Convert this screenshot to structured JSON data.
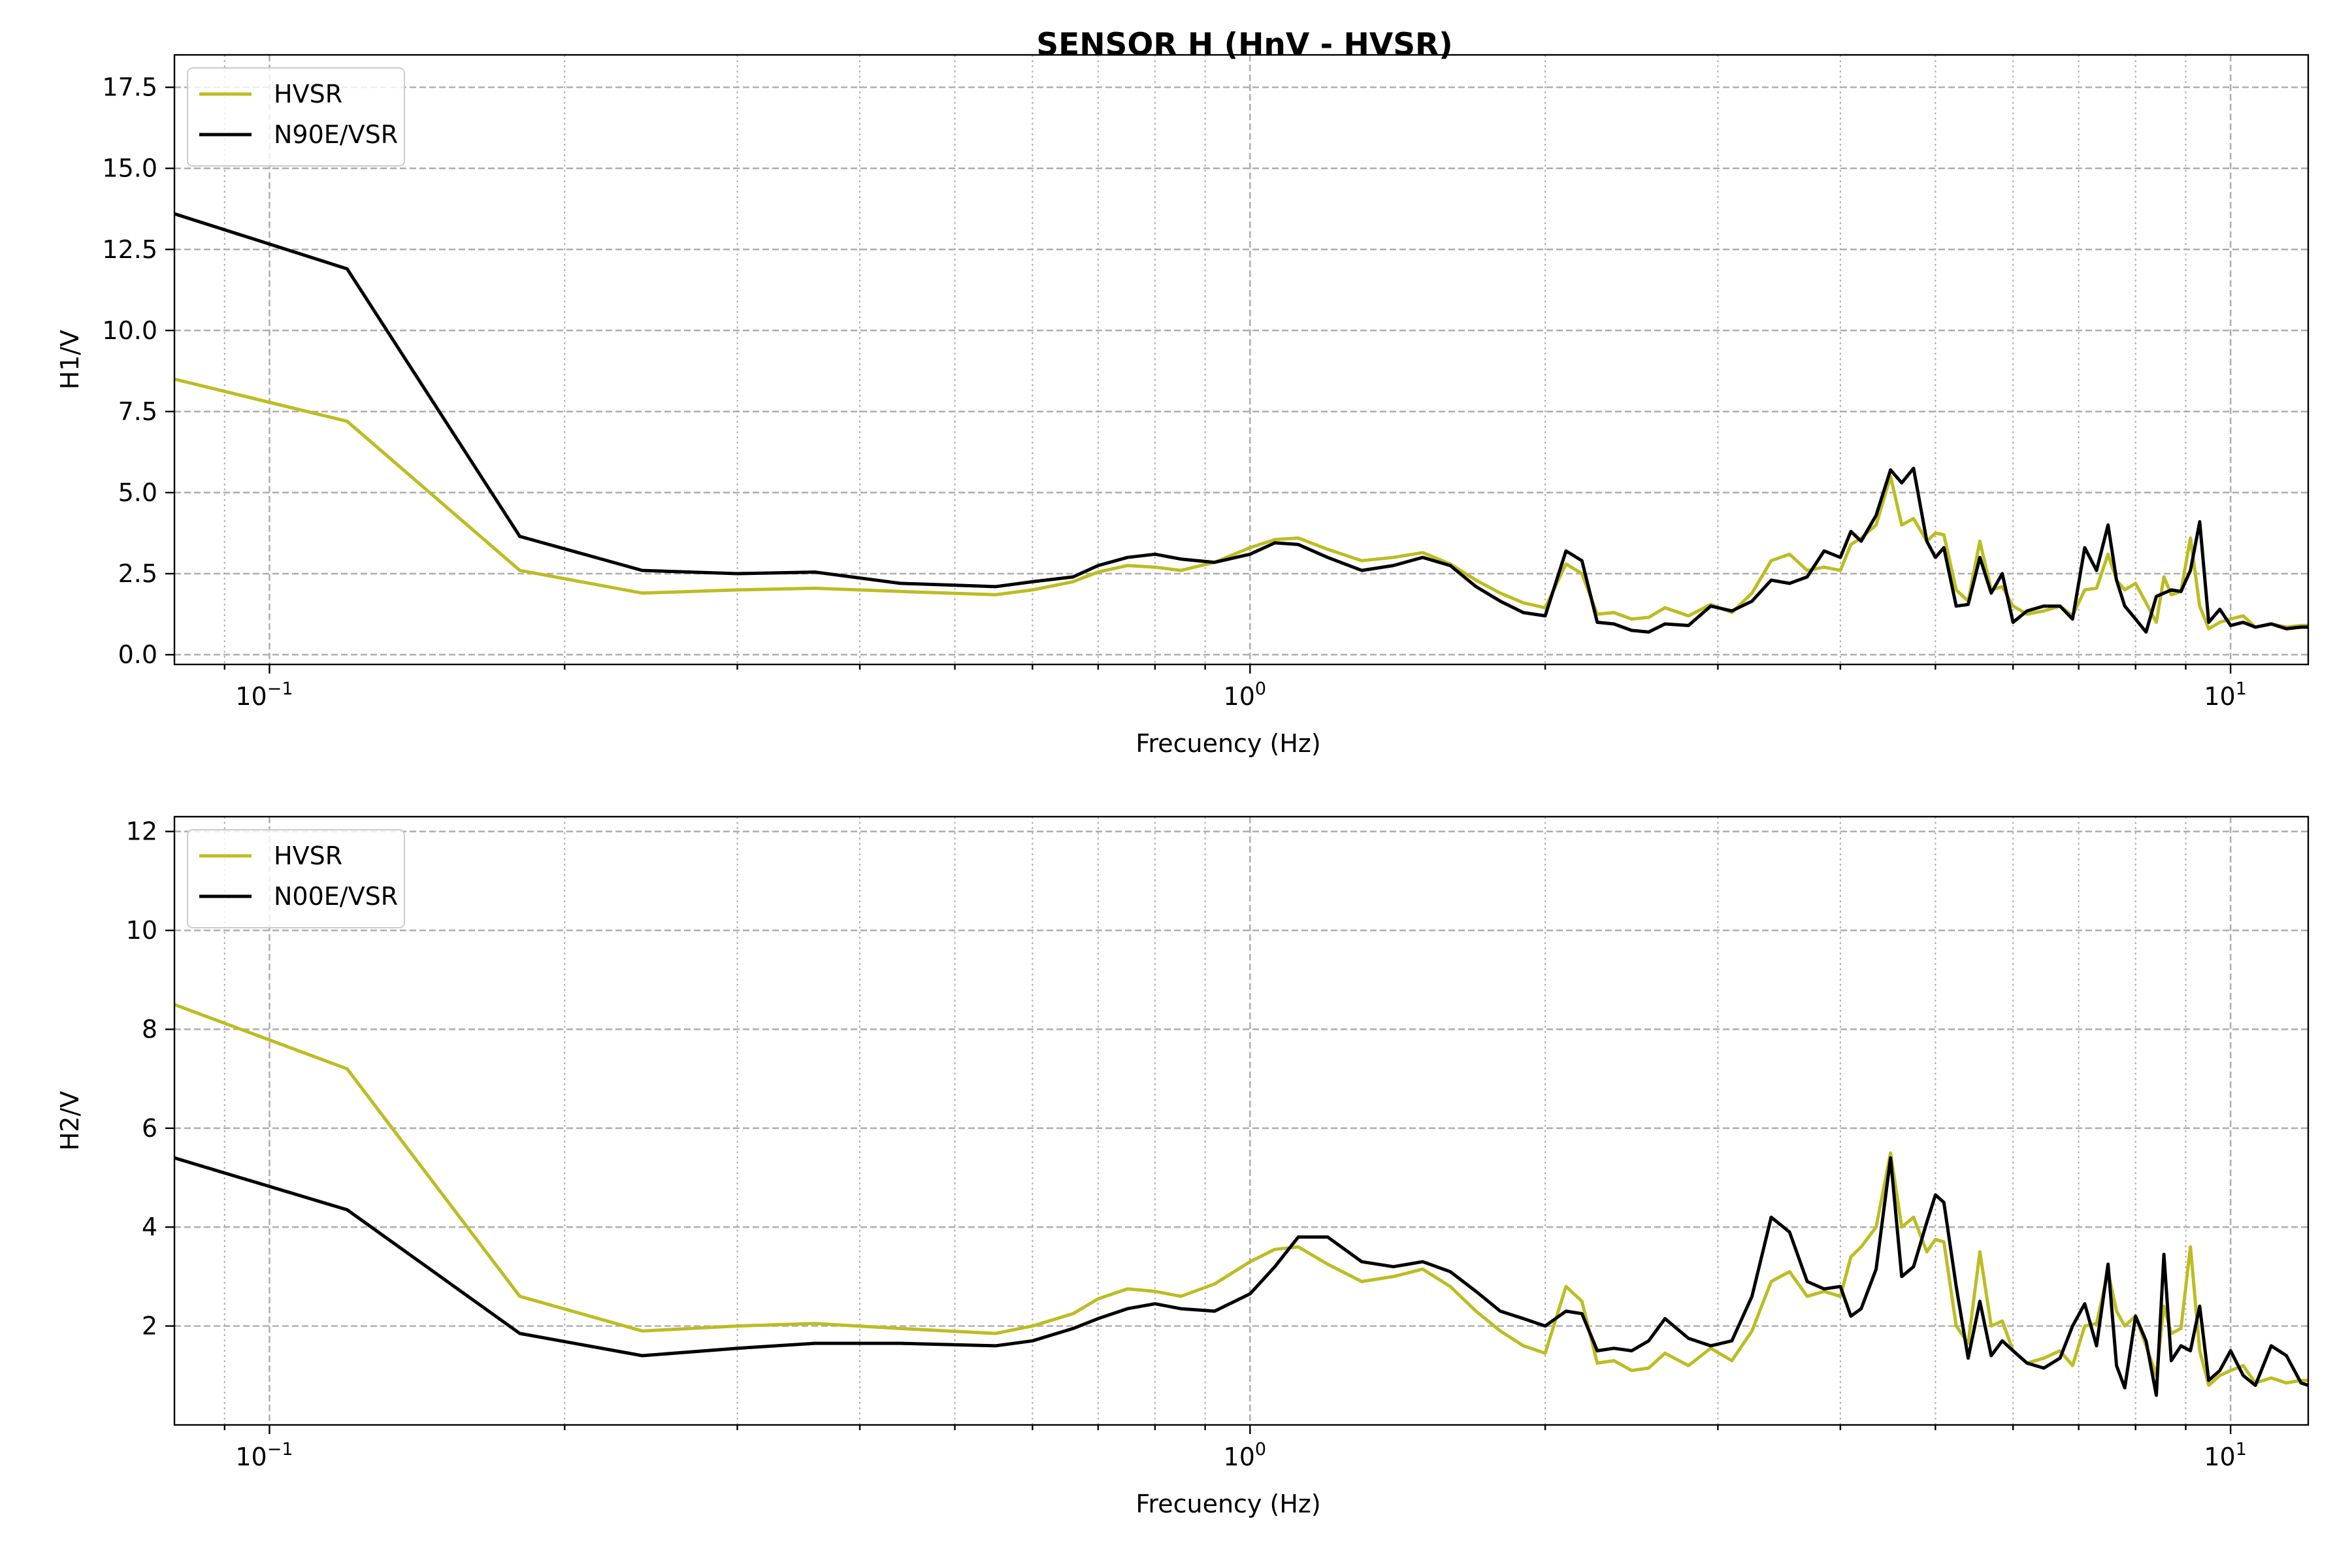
{
  "figure_title": "SENSOR H (HnV - HVSR)",
  "colors": {
    "HVSR": "#bcbd22",
    "component": "#000000"
  },
  "chart_data": [
    {
      "type": "line",
      "title": "",
      "xlabel": "Frecuency (Hz)",
      "ylabel": "H1/V",
      "xscale": "log",
      "xlim": [
        0.08,
        12
      ],
      "ylim": [
        -0.3,
        18.5
      ],
      "yticks": [
        "0.0",
        "2.5",
        "5.0",
        "7.5",
        "10.0",
        "12.5",
        "15.0",
        "17.5"
      ],
      "xticks": [
        {
          "mantissa": "10",
          "exp": "−1"
        },
        {
          "mantissa": "10",
          "exp": "0"
        },
        {
          "mantissa": "10",
          "exp": "1"
        }
      ],
      "grid": "on",
      "legend_position": "upper-left",
      "series": [
        {
          "name": "HVSR",
          "color": "#bcbd22",
          "x": [
            0.08,
            0.12,
            0.18,
            0.24,
            0.3,
            0.36,
            0.44,
            0.55,
            0.6,
            0.66,
            0.7,
            0.75,
            0.8,
            0.85,
            0.92,
            1.0,
            1.06,
            1.12,
            1.2,
            1.3,
            1.4,
            1.5,
            1.6,
            1.7,
            1.8,
            1.9,
            2.0,
            2.1,
            2.18,
            2.26,
            2.35,
            2.45,
            2.55,
            2.65,
            2.8,
            2.95,
            3.1,
            3.25,
            3.4,
            3.55,
            3.7,
            3.85,
            4.0,
            4.1,
            4.2,
            4.35,
            4.5,
            4.62,
            4.75,
            4.9,
            5.0,
            5.1,
            5.25,
            5.4,
            5.55,
            5.7,
            5.85,
            6.0,
            6.2,
            6.45,
            6.7,
            6.9,
            7.1,
            7.3,
            7.5,
            7.65,
            7.8,
            8.0,
            8.2,
            8.4,
            8.55,
            8.7,
            8.9,
            9.1,
            9.3,
            9.5,
            9.75,
            10.0,
            10.3,
            10.6,
            11.0,
            11.4,
            11.8,
            12.0
          ],
          "values": [
            8.5,
            7.2,
            2.6,
            1.9,
            2.0,
            2.05,
            1.95,
            1.85,
            2.0,
            2.25,
            2.55,
            2.75,
            2.7,
            2.6,
            2.85,
            3.3,
            3.55,
            3.6,
            3.25,
            2.9,
            3.0,
            3.15,
            2.8,
            2.3,
            1.9,
            1.6,
            1.45,
            2.8,
            2.5,
            1.25,
            1.3,
            1.1,
            1.15,
            1.45,
            1.2,
            1.55,
            1.3,
            1.9,
            2.9,
            3.1,
            2.6,
            2.7,
            2.6,
            3.4,
            3.6,
            4.0,
            5.5,
            4.0,
            4.2,
            3.5,
            3.75,
            3.7,
            2.0,
            1.65,
            3.5,
            2.0,
            2.1,
            1.5,
            1.25,
            1.35,
            1.5,
            1.2,
            2.0,
            2.05,
            3.1,
            2.3,
            2.0,
            2.2,
            1.6,
            1.0,
            2.4,
            1.85,
            1.95,
            3.6,
            1.5,
            0.8,
            1.0,
            1.1,
            1.2,
            0.85,
            0.95,
            0.85,
            0.9,
            0.9
          ]
        },
        {
          "name": "N90E/VSR",
          "color": "#000000",
          "x": [
            0.08,
            0.12,
            0.18,
            0.24,
            0.3,
            0.36,
            0.44,
            0.55,
            0.6,
            0.66,
            0.7,
            0.75,
            0.8,
            0.85,
            0.92,
            1.0,
            1.06,
            1.12,
            1.2,
            1.3,
            1.4,
            1.5,
            1.6,
            1.7,
            1.8,
            1.9,
            2.0,
            2.1,
            2.18,
            2.26,
            2.35,
            2.45,
            2.55,
            2.65,
            2.8,
            2.95,
            3.1,
            3.25,
            3.4,
            3.55,
            3.7,
            3.85,
            4.0,
            4.1,
            4.2,
            4.35,
            4.5,
            4.62,
            4.75,
            4.9,
            5.0,
            5.1,
            5.25,
            5.4,
            5.55,
            5.7,
            5.85,
            6.0,
            6.2,
            6.45,
            6.7,
            6.9,
            7.1,
            7.3,
            7.5,
            7.65,
            7.8,
            8.0,
            8.2,
            8.4,
            8.55,
            8.7,
            8.9,
            9.1,
            9.3,
            9.5,
            9.75,
            10.0,
            10.3,
            10.6,
            11.0,
            11.4,
            11.8,
            12.0
          ],
          "values": [
            13.6,
            11.9,
            3.65,
            2.6,
            2.5,
            2.55,
            2.2,
            2.1,
            2.25,
            2.4,
            2.75,
            3.0,
            3.1,
            2.95,
            2.85,
            3.1,
            3.45,
            3.4,
            3.0,
            2.6,
            2.75,
            3.0,
            2.75,
            2.1,
            1.65,
            1.3,
            1.2,
            3.2,
            2.9,
            1.0,
            0.95,
            0.75,
            0.7,
            0.95,
            0.9,
            1.5,
            1.35,
            1.65,
            2.3,
            2.2,
            2.4,
            3.2,
            3.0,
            3.8,
            3.5,
            4.3,
            5.7,
            5.3,
            5.75,
            3.5,
            3.0,
            3.3,
            1.5,
            1.55,
            3.0,
            1.9,
            2.5,
            1.0,
            1.35,
            1.5,
            1.5,
            1.1,
            3.3,
            2.6,
            4.0,
            2.3,
            1.5,
            1.1,
            0.7,
            1.8,
            1.9,
            2.0,
            1.95,
            2.6,
            4.1,
            1.0,
            1.4,
            0.9,
            1.0,
            0.85,
            0.95,
            0.8,
            0.85,
            0.85
          ]
        }
      ]
    },
    {
      "type": "line",
      "title": "",
      "xlabel": "Frecuency (Hz)",
      "ylabel": "H2/V",
      "xscale": "log",
      "xlim": [
        0.08,
        12
      ],
      "ylim": [
        0.0,
        12.3
      ],
      "yticks": [
        "2",
        "4",
        "6",
        "8",
        "10",
        "12"
      ],
      "xticks": [
        {
          "mantissa": "10",
          "exp": "−1"
        },
        {
          "mantissa": "10",
          "exp": "0"
        },
        {
          "mantissa": "10",
          "exp": "1"
        }
      ],
      "grid": "on",
      "legend_position": "upper-left",
      "series": [
        {
          "name": "HVSR",
          "color": "#bcbd22",
          "x": [
            0.08,
            0.12,
            0.18,
            0.24,
            0.3,
            0.36,
            0.44,
            0.55,
            0.6,
            0.66,
            0.7,
            0.75,
            0.8,
            0.85,
            0.92,
            1.0,
            1.06,
            1.12,
            1.2,
            1.3,
            1.4,
            1.5,
            1.6,
            1.7,
            1.8,
            1.9,
            2.0,
            2.1,
            2.18,
            2.26,
            2.35,
            2.45,
            2.55,
            2.65,
            2.8,
            2.95,
            3.1,
            3.25,
            3.4,
            3.55,
            3.7,
            3.85,
            4.0,
            4.1,
            4.2,
            4.35,
            4.5,
            4.62,
            4.75,
            4.9,
            5.0,
            5.1,
            5.25,
            5.4,
            5.55,
            5.7,
            5.85,
            6.0,
            6.2,
            6.45,
            6.7,
            6.9,
            7.1,
            7.3,
            7.5,
            7.65,
            7.8,
            8.0,
            8.2,
            8.4,
            8.55,
            8.7,
            8.9,
            9.1,
            9.3,
            9.5,
            9.75,
            10.0,
            10.3,
            10.6,
            11.0,
            11.4,
            11.8,
            12.0
          ],
          "values": [
            8.5,
            7.2,
            2.6,
            1.9,
            2.0,
            2.05,
            1.95,
            1.85,
            2.0,
            2.25,
            2.55,
            2.75,
            2.7,
            2.6,
            2.85,
            3.3,
            3.55,
            3.6,
            3.25,
            2.9,
            3.0,
            3.15,
            2.8,
            2.3,
            1.9,
            1.6,
            1.45,
            2.8,
            2.5,
            1.25,
            1.3,
            1.1,
            1.15,
            1.45,
            1.2,
            1.55,
            1.3,
            1.9,
            2.9,
            3.1,
            2.6,
            2.7,
            2.6,
            3.4,
            3.6,
            4.0,
            5.5,
            4.0,
            4.2,
            3.5,
            3.75,
            3.7,
            2.0,
            1.65,
            3.5,
            2.0,
            2.1,
            1.5,
            1.25,
            1.35,
            1.5,
            1.2,
            2.0,
            2.05,
            3.1,
            2.3,
            2.0,
            2.2,
            1.6,
            1.0,
            2.4,
            1.85,
            1.95,
            3.6,
            1.5,
            0.8,
            1.0,
            1.1,
            1.2,
            0.85,
            0.95,
            0.85,
            0.9,
            0.9
          ]
        },
        {
          "name": "N00E/VSR",
          "color": "#000000",
          "x": [
            0.08,
            0.12,
            0.18,
            0.24,
            0.3,
            0.36,
            0.44,
            0.55,
            0.6,
            0.66,
            0.7,
            0.75,
            0.8,
            0.85,
            0.92,
            1.0,
            1.06,
            1.12,
            1.2,
            1.3,
            1.4,
            1.5,
            1.6,
            1.7,
            1.8,
            1.9,
            2.0,
            2.1,
            2.18,
            2.26,
            2.35,
            2.45,
            2.55,
            2.65,
            2.8,
            2.95,
            3.1,
            3.25,
            3.4,
            3.55,
            3.7,
            3.85,
            4.0,
            4.1,
            4.2,
            4.35,
            4.5,
            4.62,
            4.75,
            4.9,
            5.0,
            5.1,
            5.25,
            5.4,
            5.55,
            5.7,
            5.85,
            6.0,
            6.2,
            6.45,
            6.7,
            6.9,
            7.1,
            7.3,
            7.5,
            7.65,
            7.8,
            8.0,
            8.2,
            8.4,
            8.55,
            8.7,
            8.9,
            9.1,
            9.3,
            9.5,
            9.75,
            10.0,
            10.3,
            10.6,
            11.0,
            11.4,
            11.8,
            12.0
          ],
          "values": [
            5.4,
            4.35,
            1.85,
            1.4,
            1.55,
            1.65,
            1.65,
            1.6,
            1.7,
            1.95,
            2.15,
            2.35,
            2.45,
            2.35,
            2.3,
            2.65,
            3.2,
            3.8,
            3.8,
            3.3,
            3.2,
            3.3,
            3.1,
            2.7,
            2.3,
            2.15,
            2.0,
            2.3,
            2.25,
            1.5,
            1.55,
            1.5,
            1.7,
            2.15,
            1.75,
            1.6,
            1.7,
            2.6,
            4.2,
            3.9,
            2.9,
            2.75,
            2.8,
            2.2,
            2.35,
            3.15,
            5.4,
            3.0,
            3.2,
            4.1,
            4.65,
            4.5,
            2.8,
            1.35,
            2.5,
            1.4,
            1.7,
            1.5,
            1.25,
            1.15,
            1.35,
            2.0,
            2.45,
            1.6,
            3.25,
            1.2,
            0.75,
            2.2,
            1.7,
            0.6,
            3.45,
            1.3,
            1.6,
            1.5,
            2.4,
            0.9,
            1.1,
            1.5,
            1.0,
            0.8,
            1.6,
            1.4,
            0.85,
            0.8
          ]
        }
      ]
    }
  ]
}
